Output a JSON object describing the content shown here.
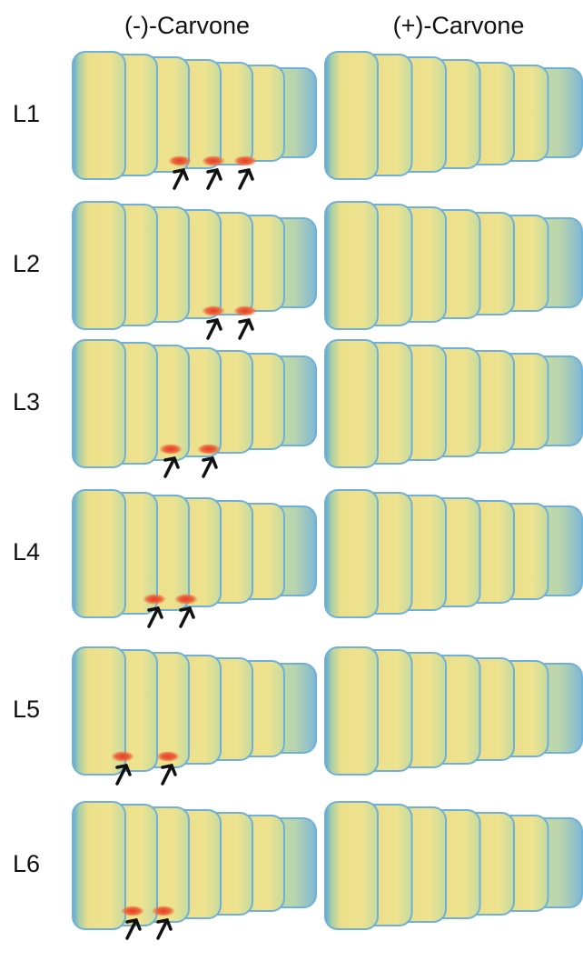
{
  "columns": [
    "(-)-Carvone",
    "(+)-Carvone"
  ],
  "rows": [
    "L1",
    "L2",
    "L3",
    "L4",
    "L5",
    "L6"
  ]
}
